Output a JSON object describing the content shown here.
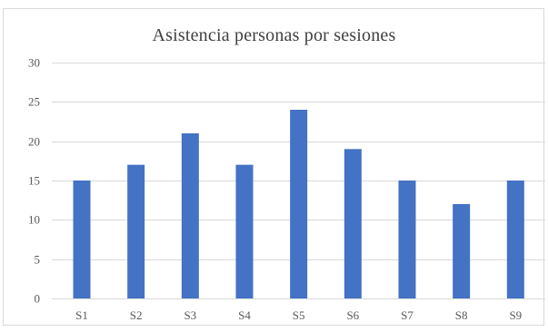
{
  "chart_data": {
    "type": "bar",
    "title": "Asistencia personas por sesiones",
    "xlabel": "",
    "ylabel": "",
    "categories": [
      "S1",
      "S2",
      "S3",
      "S4",
      "S5",
      "S6",
      "S7",
      "S8",
      "S9"
    ],
    "values": [
      15,
      17,
      21,
      17,
      24,
      19,
      15,
      12,
      15
    ],
    "ylim": [
      0,
      30
    ],
    "yticks": [
      0,
      5,
      10,
      15,
      20,
      25,
      30
    ],
    "grid": true,
    "legend": "none",
    "bar_color": "#4472c4",
    "grid_color": "#d9d9d9"
  }
}
